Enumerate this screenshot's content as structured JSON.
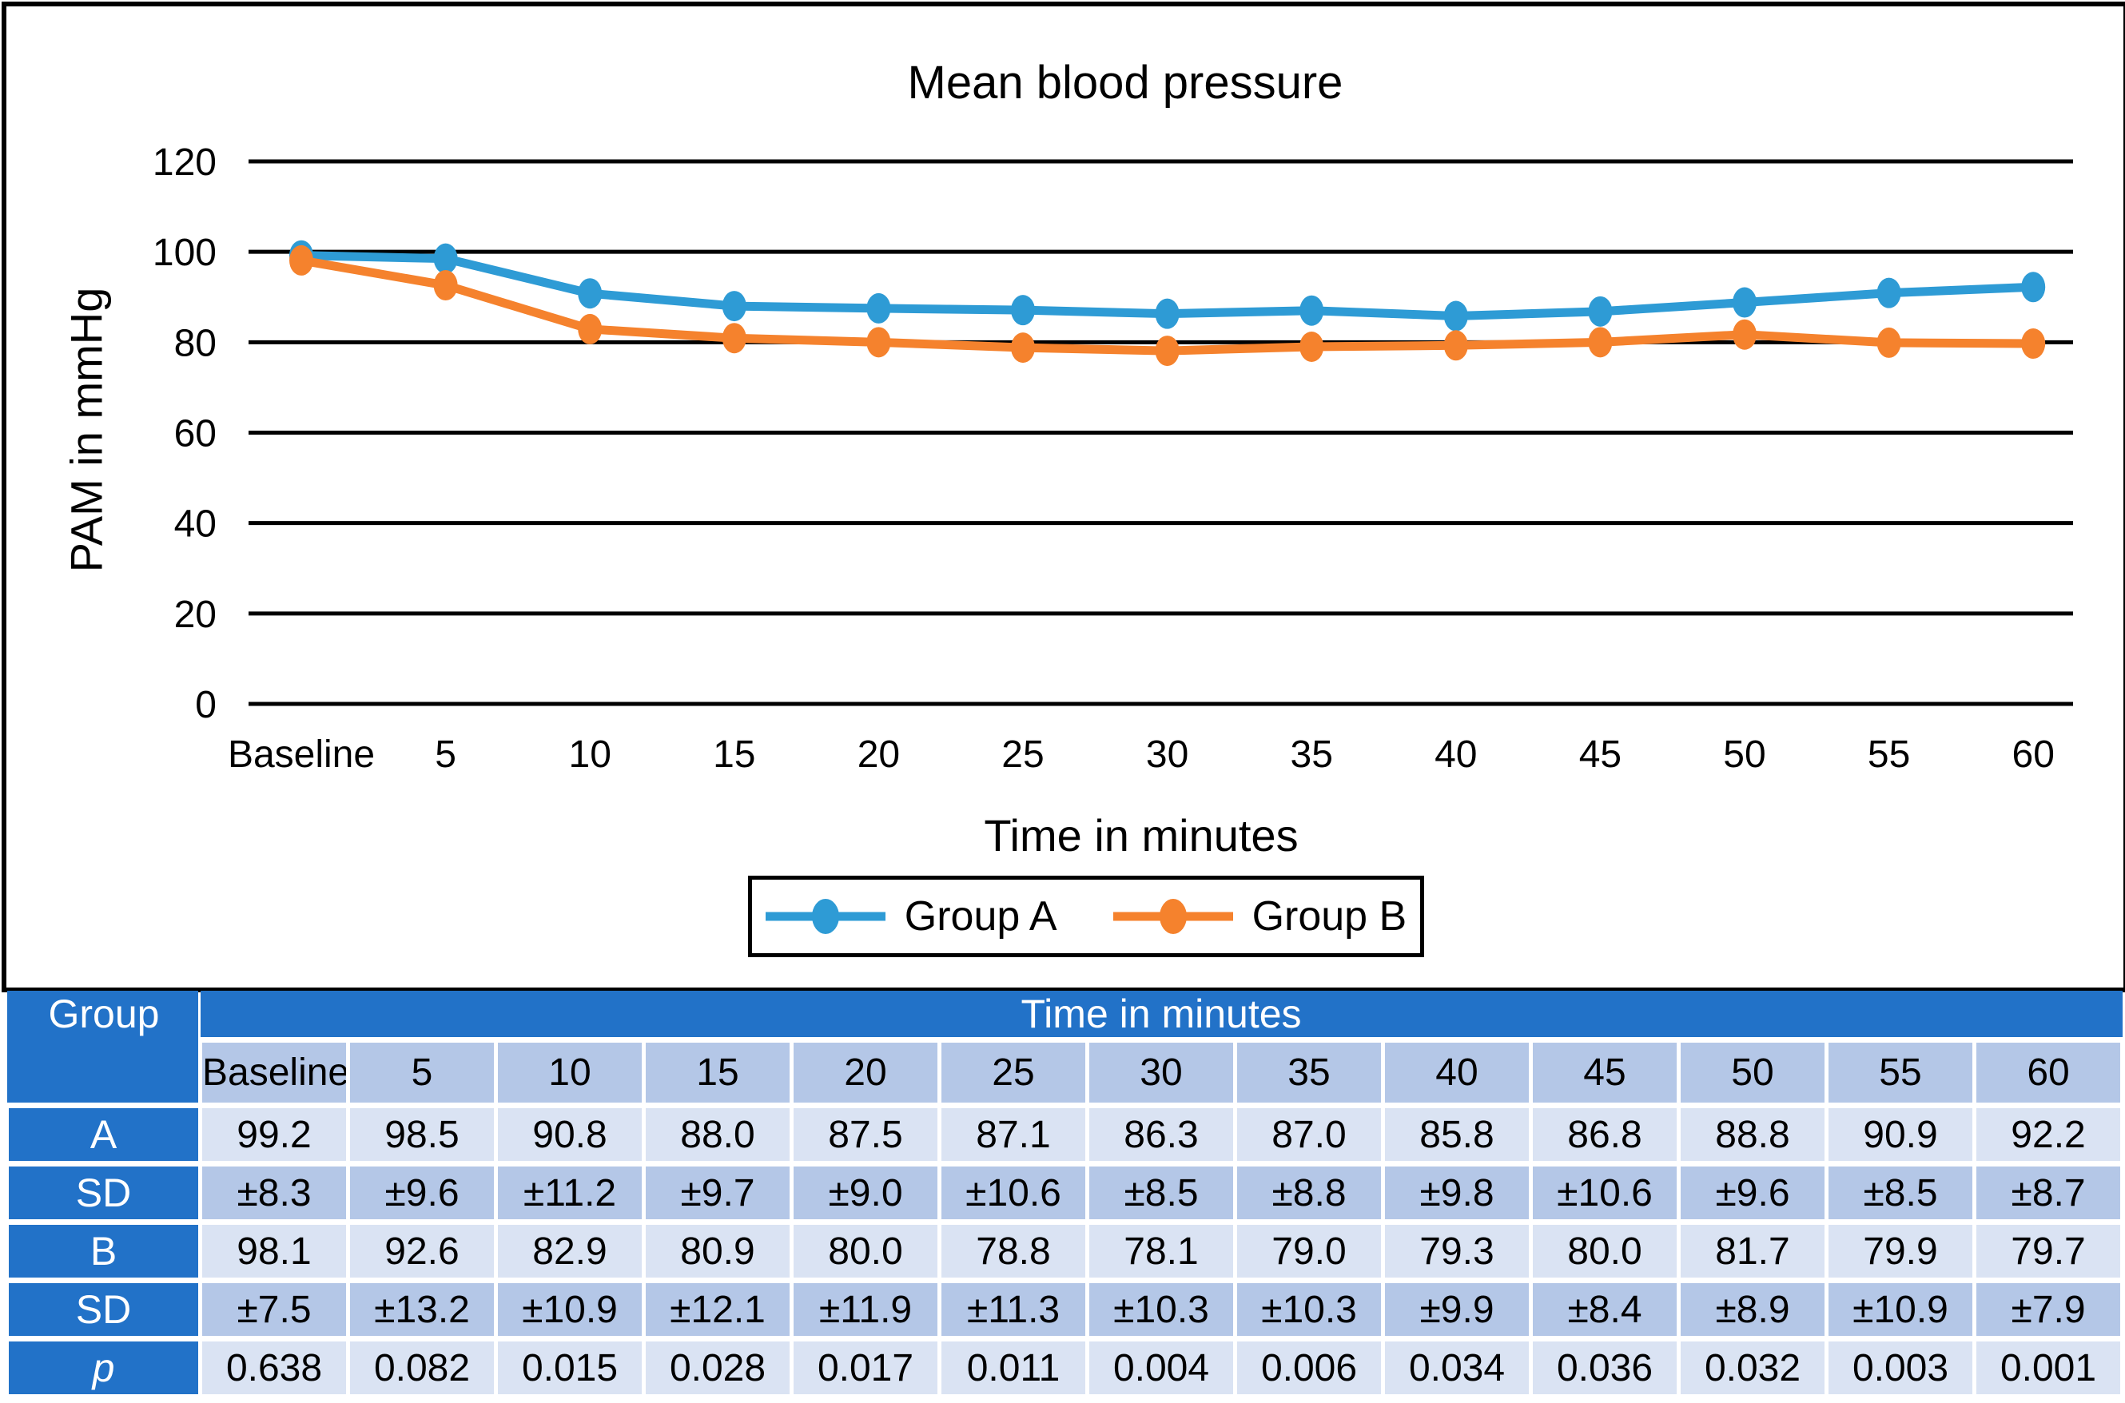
{
  "chart_data": {
    "type": "line",
    "title": "Mean blood pressure",
    "xlabel": "Time in minutes",
    "ylabel": "PAM in mmHg",
    "categories": [
      "Baseline",
      "5",
      "10",
      "15",
      "20",
      "25",
      "30",
      "35",
      "40",
      "45",
      "50",
      "55",
      "60"
    ],
    "ylim": [
      0,
      120
    ],
    "yticks": [
      0,
      20,
      40,
      60,
      80,
      100,
      120
    ],
    "grid": "horizontal-only",
    "legend_position": "bottom-boxed",
    "series": [
      {
        "name": "Group A",
        "color": "#2E9BD5",
        "values": [
          99.2,
          98.5,
          90.8,
          88.0,
          87.5,
          87.1,
          86.3,
          87.0,
          85.8,
          86.8,
          88.8,
          90.9,
          92.2
        ]
      },
      {
        "name": "Group B",
        "color": "#F5822D",
        "values": [
          98.1,
          92.6,
          82.9,
          80.9,
          80.0,
          78.8,
          78.1,
          79.0,
          79.3,
          80.0,
          81.7,
          79.9,
          79.7
        ]
      }
    ]
  },
  "table": {
    "corner_header": "Group",
    "span_header": "Time in minutes",
    "col_headers": [
      "Baseline",
      "5",
      "10",
      "15",
      "20",
      "25",
      "30",
      "35",
      "40",
      "45",
      "50",
      "55",
      "60"
    ],
    "rows": [
      {
        "label": "A",
        "italic": false,
        "band": "light",
        "values": [
          "99.2",
          "98.5",
          "90.8",
          "88.0",
          "87.5",
          "87.1",
          "86.3",
          "87.0",
          "85.8",
          "86.8",
          "88.8",
          "90.9",
          "92.2"
        ]
      },
      {
        "label": "SD",
        "italic": false,
        "band": "medium",
        "values": [
          "±8.3",
          "±9.6",
          "±11.2",
          "±9.7",
          "±9.0",
          "±10.6",
          "±8.5",
          "±8.8",
          "±9.8",
          "±10.6",
          "±9.6",
          "±8.5",
          "±8.7"
        ]
      },
      {
        "label": "B",
        "italic": false,
        "band": "light",
        "values": [
          "98.1",
          "92.6",
          "82.9",
          "80.9",
          "80.0",
          "78.8",
          "78.1",
          "79.0",
          "79.3",
          "80.0",
          "81.7",
          "79.9",
          "79.7"
        ]
      },
      {
        "label": "SD",
        "italic": false,
        "band": "medium",
        "values": [
          "±7.5",
          "±13.2",
          "±10.9",
          "±12.1",
          "±11.9",
          "±11.3",
          "±10.3",
          "±10.3",
          "±9.9",
          "±8.4",
          "±8.9",
          "±10.9",
          "±7.9"
        ]
      },
      {
        "label": "p",
        "italic": true,
        "band": "light",
        "values": [
          "0.638",
          "0.082",
          "0.015",
          "0.028",
          "0.017",
          "0.011",
          "0.004",
          "0.006",
          "0.034",
          "0.036",
          "0.032",
          "0.003",
          "0.001"
        ]
      }
    ],
    "colors": {
      "header_bg": "#2272C8",
      "band_medium": "#B4C7E7",
      "band_light": "#DAE3F3",
      "header_text": "#FFFFFF",
      "cell_text": "#000000"
    }
  }
}
